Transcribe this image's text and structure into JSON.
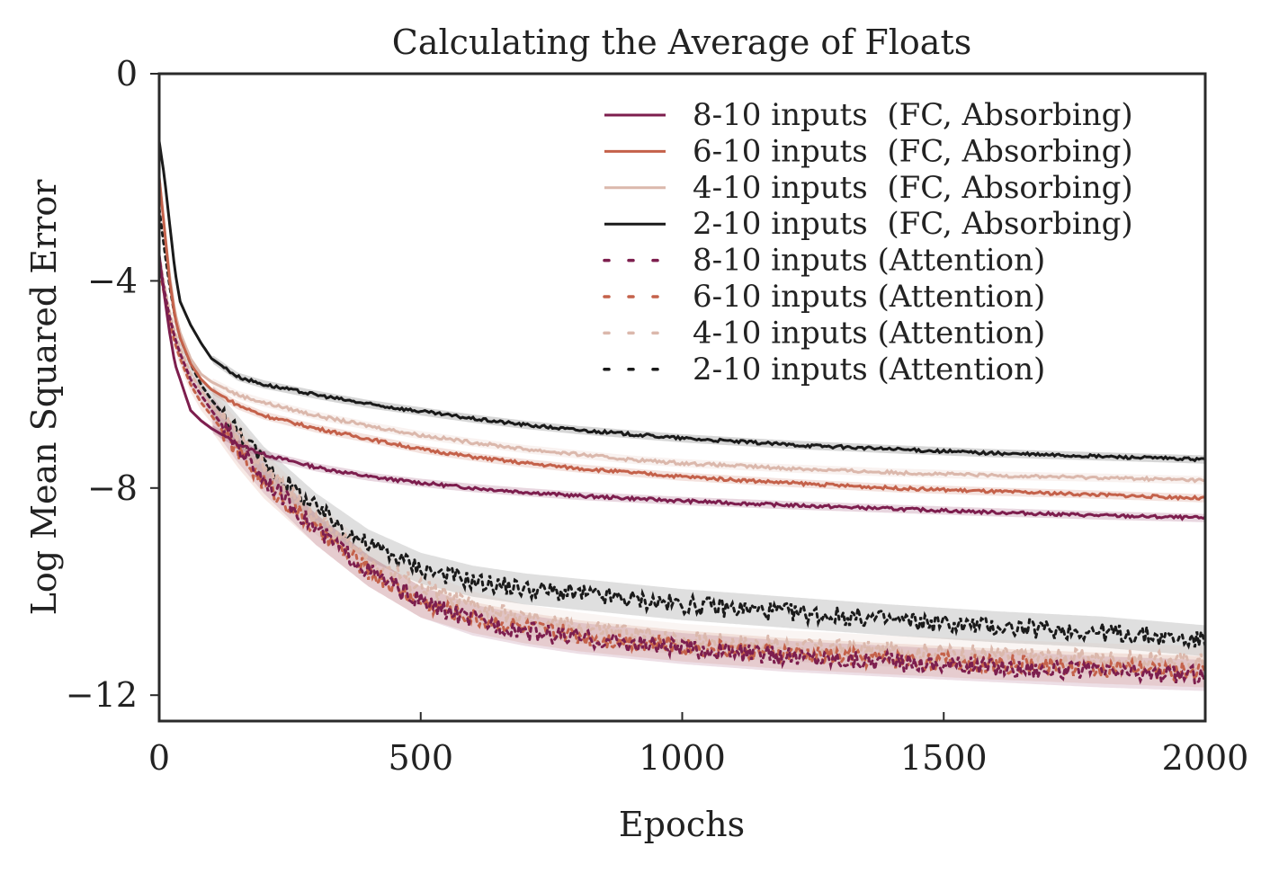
{
  "chart_data": {
    "type": "line",
    "title": "Calculating the Average of Floats",
    "xlabel": "Epochs",
    "ylabel": "Log Mean Squared Error",
    "xlim": [
      0,
      2000
    ],
    "ylim": [
      -12.5,
      0
    ],
    "xticks": [
      0,
      500,
      1000,
      1500,
      2000
    ],
    "xtick_labels": [
      "0",
      "500",
      "1000",
      "1500",
      "2000"
    ],
    "yticks": [
      0,
      -4,
      -8,
      -12
    ],
    "ytick_labels": [
      "0",
      "−4",
      "−8",
      "−12"
    ],
    "grid": false,
    "legend_position": "top-right",
    "series": [
      {
        "name": "8-10 inputs  (FC, Absorbing)",
        "style": "solid",
        "color": "#7d1e4e",
        "x": [
          0,
          10,
          20,
          30,
          40,
          60,
          80,
          100,
          150,
          200,
          300,
          400,
          500,
          600,
          700,
          800,
          900,
          1000,
          1200,
          1400,
          1600,
          1800,
          2000
        ],
        "y": [
          -3.5,
          -4.3,
          -5.0,
          -5.6,
          -5.9,
          -6.5,
          -6.7,
          -6.85,
          -7.15,
          -7.35,
          -7.6,
          -7.78,
          -7.9,
          -8.0,
          -8.08,
          -8.15,
          -8.2,
          -8.25,
          -8.33,
          -8.4,
          -8.47,
          -8.53,
          -8.58
        ],
        "band": 0.08
      },
      {
        "name": "6-10 inputs  (FC, Absorbing)",
        "style": "solid",
        "color": "#c4614a",
        "x": [
          0,
          10,
          20,
          30,
          40,
          60,
          80,
          100,
          150,
          200,
          300,
          400,
          500,
          600,
          700,
          800,
          900,
          1000,
          1200,
          1400,
          1600,
          1800,
          2000
        ],
        "y": [
          -2.0,
          -3.0,
          -4.0,
          -4.7,
          -5.1,
          -5.6,
          -5.9,
          -6.1,
          -6.4,
          -6.6,
          -6.85,
          -7.05,
          -7.25,
          -7.4,
          -7.52,
          -7.62,
          -7.7,
          -7.78,
          -7.9,
          -8.0,
          -8.07,
          -8.13,
          -8.2
        ],
        "band": 0.08
      },
      {
        "name": "4-10 inputs  (FC, Absorbing)",
        "style": "solid",
        "color": "#dbb8ac",
        "x": [
          0,
          10,
          20,
          30,
          40,
          60,
          80,
          100,
          150,
          200,
          300,
          400,
          500,
          600,
          700,
          800,
          900,
          1000,
          1200,
          1400,
          1600,
          1800,
          2000
        ],
        "y": [
          -2.0,
          -3.0,
          -3.9,
          -4.6,
          -5.0,
          -5.5,
          -5.8,
          -5.95,
          -6.2,
          -6.35,
          -6.6,
          -6.8,
          -6.98,
          -7.12,
          -7.25,
          -7.35,
          -7.45,
          -7.52,
          -7.62,
          -7.7,
          -7.76,
          -7.8,
          -7.85
        ],
        "band": 0.08
      },
      {
        "name": "2-10 inputs  (FC, Absorbing)",
        "style": "solid",
        "color": "#1a1a1a",
        "x": [
          0,
          10,
          20,
          30,
          40,
          60,
          80,
          100,
          150,
          200,
          300,
          400,
          500,
          600,
          700,
          800,
          900,
          1000,
          1200,
          1400,
          1600,
          1800,
          2000
        ],
        "y": [
          -1.3,
          -2.0,
          -2.9,
          -3.8,
          -4.4,
          -4.85,
          -5.2,
          -5.5,
          -5.85,
          -6.0,
          -6.2,
          -6.38,
          -6.52,
          -6.66,
          -6.78,
          -6.88,
          -6.96,
          -7.04,
          -7.16,
          -7.25,
          -7.33,
          -7.39,
          -7.45
        ],
        "band": 0.08
      },
      {
        "name": "8-10 inputs (Attention)",
        "style": "dotted",
        "color": "#7d1e4e",
        "x": [
          0,
          10,
          20,
          30,
          40,
          60,
          80,
          100,
          150,
          200,
          300,
          400,
          500,
          600,
          700,
          800,
          900,
          1000,
          1200,
          1400,
          1600,
          1800,
          2000
        ],
        "y": [
          -3.6,
          -4.2,
          -4.7,
          -5.1,
          -5.4,
          -5.9,
          -6.2,
          -6.5,
          -7.2,
          -7.8,
          -8.8,
          -9.6,
          -10.2,
          -10.55,
          -10.75,
          -10.9,
          -11.0,
          -11.1,
          -11.25,
          -11.35,
          -11.45,
          -11.55,
          -11.62
        ],
        "band": 0.3
      },
      {
        "name": "6-10 inputs (Attention)",
        "style": "dotted",
        "color": "#c4614a",
        "x": [
          0,
          10,
          20,
          30,
          40,
          60,
          80,
          100,
          150,
          200,
          300,
          400,
          500,
          600,
          700,
          800,
          900,
          1000,
          1200,
          1400,
          1600,
          1800,
          2000
        ],
        "y": [
          -3.7,
          -4.3,
          -4.8,
          -5.2,
          -5.5,
          -6.0,
          -6.35,
          -6.6,
          -7.3,
          -7.9,
          -8.8,
          -9.6,
          -10.2,
          -10.5,
          -10.7,
          -10.85,
          -10.95,
          -11.05,
          -11.2,
          -11.3,
          -11.4,
          -11.48,
          -11.55
        ],
        "band": 0.3
      },
      {
        "name": "4-10 inputs (Attention)",
        "style": "dotted",
        "color": "#dbb8ac",
        "x": [
          0,
          10,
          20,
          30,
          40,
          60,
          80,
          100,
          150,
          200,
          300,
          400,
          500,
          600,
          700,
          800,
          900,
          1000,
          1200,
          1400,
          1600,
          1800,
          2000
        ],
        "y": [
          -3.5,
          -4.1,
          -4.6,
          -5.0,
          -5.3,
          -5.8,
          -6.1,
          -6.4,
          -7.0,
          -7.6,
          -8.6,
          -9.4,
          -9.9,
          -10.3,
          -10.55,
          -10.7,
          -10.82,
          -10.92,
          -11.05,
          -11.15,
          -11.23,
          -11.3,
          -11.35
        ],
        "band": 0.3
      },
      {
        "name": "2-10 inputs (Attention)",
        "style": "dotted",
        "color": "#1a1a1a",
        "x": [
          0,
          10,
          20,
          30,
          40,
          60,
          80,
          100,
          150,
          200,
          300,
          400,
          500,
          600,
          700,
          800,
          900,
          1000,
          1200,
          1400,
          1600,
          1800,
          2000
        ],
        "y": [
          -2.6,
          -3.4,
          -4.1,
          -4.7,
          -5.1,
          -5.6,
          -6.0,
          -6.3,
          -6.9,
          -7.5,
          -8.4,
          -9.1,
          -9.55,
          -9.8,
          -9.95,
          -10.05,
          -10.15,
          -10.25,
          -10.4,
          -10.55,
          -10.68,
          -10.78,
          -10.95
        ],
        "band": 0.3
      }
    ]
  }
}
